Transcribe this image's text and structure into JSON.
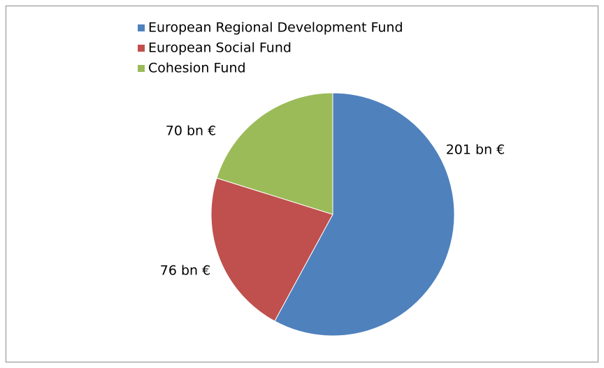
{
  "chart_data": {
    "type": "pie",
    "categories": [
      "European Regional Development  Fund",
      "European Social Fund",
      "Cohesion Fund"
    ],
    "values": [
      201,
      76,
      70
    ],
    "value_labels": [
      "201 bn €",
      "76 bn €",
      "70 bn €"
    ],
    "colors": [
      "#4f81bd",
      "#c0504d",
      "#9bbb59"
    ],
    "legend": "top"
  }
}
